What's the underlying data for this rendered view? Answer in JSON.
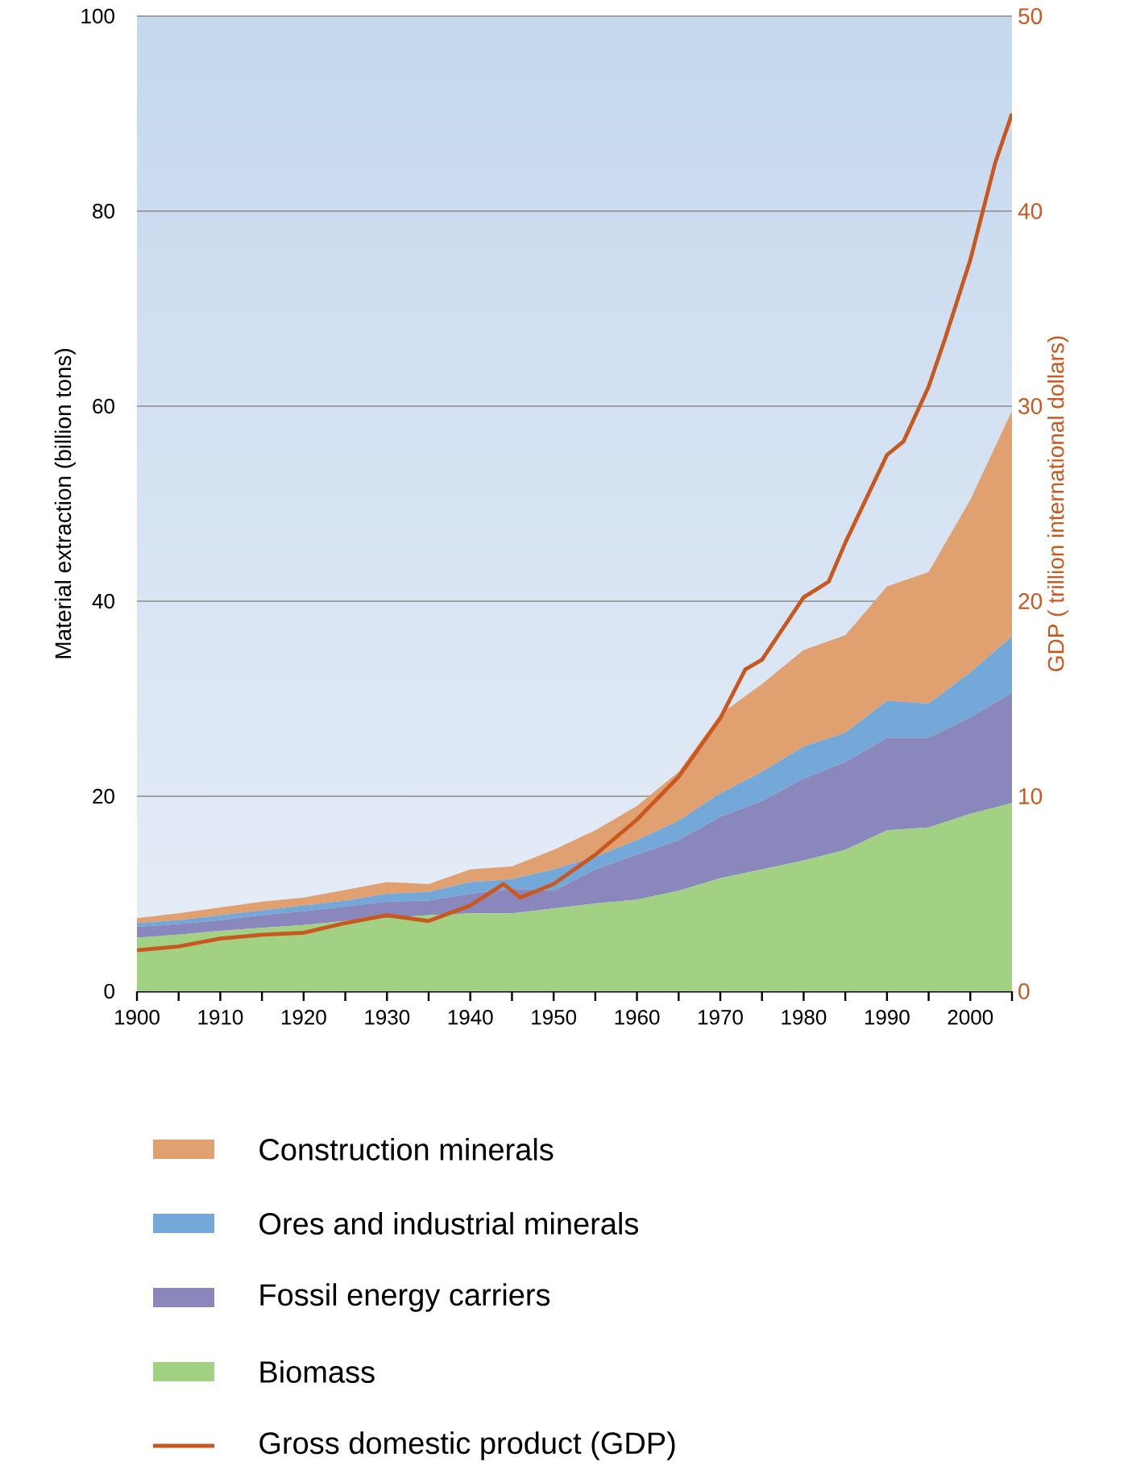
{
  "chart_data": {
    "type": "area",
    "stacked": true,
    "ylabel": "Material extraction (billion tons)",
    "y2label": "GDP ( trillion international dollars)",
    "x": [
      1900,
      1905,
      1910,
      1915,
      1920,
      1925,
      1930,
      1935,
      1940,
      1945,
      1950,
      1955,
      1960,
      1965,
      1970,
      1975,
      1980,
      1985,
      1990,
      1995,
      2000,
      2005
    ],
    "series": [
      {
        "name": "Biomass",
        "color": "#a3d183",
        "values": [
          5.5,
          5.8,
          6.2,
          6.5,
          6.8,
          7.2,
          7.5,
          7.8,
          8.0,
          8.0,
          8.5,
          9.0,
          9.4,
          10.3,
          11.6,
          12.5,
          13.4,
          14.5,
          16.5,
          16.8,
          18.2,
          19.3
        ]
      },
      {
        "name": "Fossil energy carriers",
        "color": "#8a87bd",
        "values": [
          1.1,
          1.1,
          1.1,
          1.3,
          1.4,
          1.5,
          1.7,
          1.5,
          2.0,
          2.5,
          1.8,
          3.5,
          4.6,
          5.2,
          6.3,
          7.0,
          8.4,
          9.0,
          9.5,
          9.2,
          9.9,
          11.3
        ]
      },
      {
        "name": "Ores and industrial minerals",
        "color": "#74a8d8",
        "values": [
          0.4,
          0.4,
          0.5,
          0.5,
          0.6,
          0.6,
          0.8,
          0.9,
          1.2,
          1.0,
          2.2,
          1.3,
          1.5,
          2.0,
          2.4,
          3.0,
          3.3,
          3.0,
          3.8,
          3.5,
          4.6,
          5.8
        ]
      },
      {
        "name": "Construction minerals",
        "color": "#e0a070",
        "values": [
          0.5,
          0.7,
          0.8,
          0.9,
          0.8,
          1.1,
          1.2,
          0.8,
          1.3,
          1.3,
          2.0,
          2.7,
          3.5,
          5.0,
          8.1,
          9.0,
          9.9,
          10.0,
          11.7,
          13.5,
          17.7,
          23.1
        ]
      },
      {
        "name": "Gross domestic product (GDP)",
        "type": "line",
        "axis": "y2",
        "color": "#c8581e",
        "x": [
          1900,
          1905,
          1910,
          1915,
          1920,
          1925,
          1930,
          1935,
          1940,
          1944,
          1946,
          1950,
          1955,
          1960,
          1965,
          1970,
          1973,
          1975,
          1980,
          1983,
          1985,
          1990,
          1992,
          1995,
          1997,
          2000,
          2003,
          2005
        ],
        "values": [
          2.1,
          2.3,
          2.7,
          2.9,
          3.0,
          3.5,
          3.9,
          3.6,
          4.4,
          5.5,
          4.8,
          5.5,
          7.0,
          8.8,
          11.0,
          14.0,
          16.5,
          17.0,
          20.2,
          21.0,
          23.0,
          27.5,
          28.2,
          31.0,
          33.5,
          37.5,
          42.5,
          45.0
        ]
      }
    ],
    "xlim": [
      1900,
      2005
    ],
    "xticks": [
      1900,
      {
        "value": 1905,
        "label": null
      },
      1910,
      {
        "value": 1915,
        "label": null
      },
      1920,
      {
        "value": 1925,
        "label": null
      },
      1930,
      {
        "value": 1935,
        "label": null
      },
      1940,
      {
        "value": 1945,
        "label": null
      },
      1950,
      {
        "value": 1955,
        "label": null
      },
      1960,
      {
        "value": 1965,
        "label": null
      },
      1970,
      {
        "value": 1975,
        "label": null
      },
      1980,
      {
        "value": 1985,
        "label": null
      },
      1990,
      {
        "value": 1995,
        "label": null
      },
      2000,
      {
        "value": 2005,
        "label": null
      }
    ],
    "ylim": [
      0,
      100
    ],
    "yticks": [
      0,
      20,
      40,
      60,
      80,
      100
    ],
    "y2lim": [
      0,
      50
    ],
    "y2ticks": [
      0,
      10,
      20,
      30,
      40,
      50
    ],
    "grid": "y",
    "legend": "bottom"
  }
}
